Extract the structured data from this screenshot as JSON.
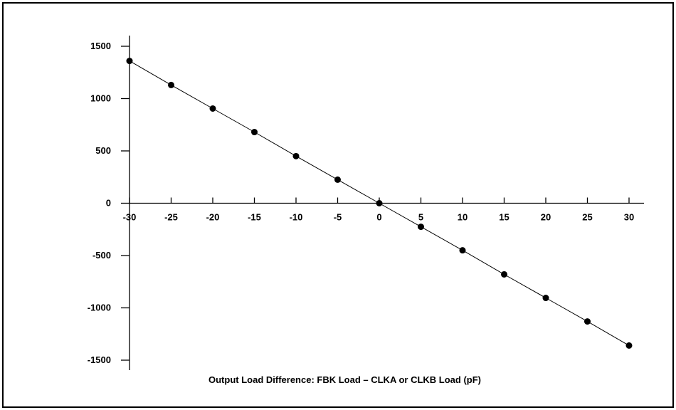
{
  "chart_data": {
    "type": "scatter",
    "title": "",
    "xlabel": "Output Load Difference: FBK Load – CLKA or CLKB Load (pF)",
    "ylabel": "",
    "xlim": [
      -30,
      30
    ],
    "ylim": [
      -1500,
      1500
    ],
    "x_ticks": [
      -30,
      -25,
      -20,
      -15,
      -10,
      -5,
      0,
      5,
      10,
      15,
      20,
      25,
      30
    ],
    "y_ticks": [
      1500,
      1000,
      500,
      0,
      -500,
      -1000,
      -1500
    ],
    "series": [
      {
        "x": [
          -30,
          -25,
          -20,
          -15,
          -10,
          -5,
          0,
          5,
          10,
          15,
          20,
          25,
          30
        ],
        "y": [
          1360,
          1130,
          905,
          680,
          450,
          225,
          0,
          -225,
          -450,
          -680,
          -905,
          -1130,
          -1360
        ],
        "marker": "filled-circle",
        "line": true,
        "color": "#000000"
      }
    ],
    "grid": false,
    "legend": "none"
  }
}
